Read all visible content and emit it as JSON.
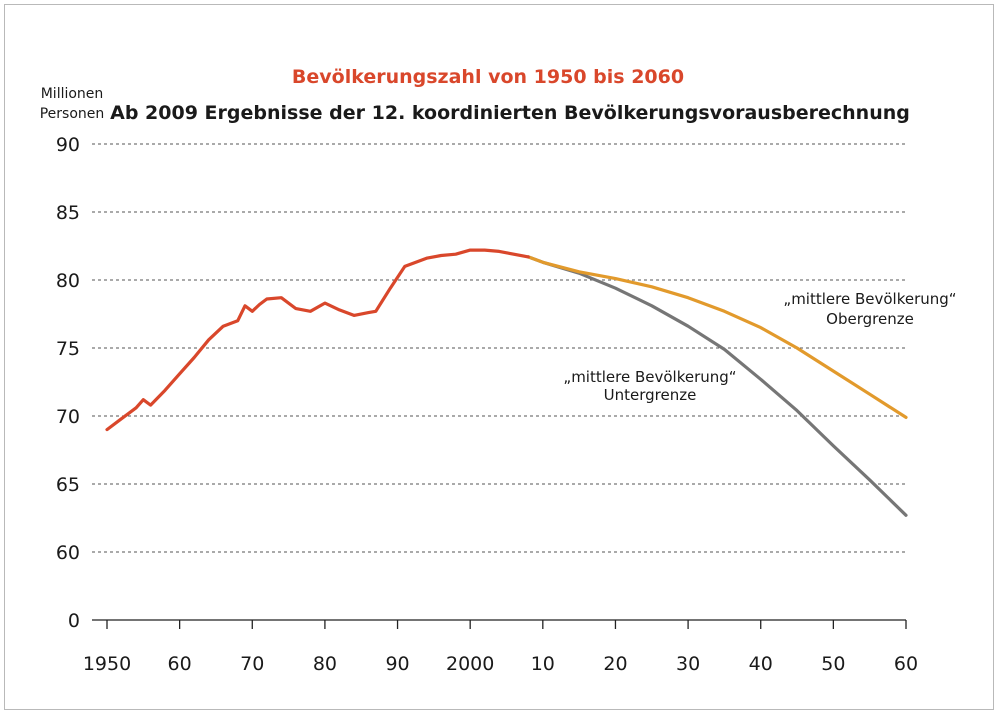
{
  "chart_data": {
    "type": "line",
    "title": "Bevölkerungszahl von 1950 bis 2060",
    "subtitle": "Ab 2009 Ergebnisse der 12. koordinierten Bevölkerungsvorausberechnung",
    "ylabel": [
      "Millionen",
      "Personen"
    ],
    "xlim": [
      1950,
      2060
    ],
    "x_ticks": [
      1950,
      1960,
      1970,
      1980,
      1990,
      2000,
      2010,
      2020,
      2030,
      2040,
      2050,
      2060
    ],
    "x_tick_labels": [
      "1950",
      "60",
      "70",
      "80",
      "90",
      "2000",
      "10",
      "20",
      "30",
      "40",
      "50",
      "60"
    ],
    "y_ticks": [
      0,
      60,
      65,
      70,
      75,
      80,
      85,
      90
    ],
    "y_tick_labels": [
      "0",
      "60",
      "65",
      "70",
      "75",
      "80",
      "85",
      "90"
    ],
    "y_axis_break": "between 0 and 60",
    "grid": "horizontal dashed",
    "series": [
      {
        "name": "",
        "color": "#d9472b",
        "points": [
          [
            1950,
            69.0
          ],
          [
            1952,
            69.8
          ],
          [
            1954,
            70.6
          ],
          [
            1955,
            71.2
          ],
          [
            1956,
            70.8
          ],
          [
            1958,
            71.9
          ],
          [
            1960,
            73.1
          ],
          [
            1962,
            74.3
          ],
          [
            1964,
            75.6
          ],
          [
            1966,
            76.6
          ],
          [
            1968,
            77.0
          ],
          [
            1969,
            78.1
          ],
          [
            1970,
            77.7
          ],
          [
            1971,
            78.2
          ],
          [
            1972,
            78.6
          ],
          [
            1974,
            78.7
          ],
          [
            1976,
            77.9
          ],
          [
            1978,
            77.7
          ],
          [
            1980,
            78.3
          ],
          [
            1982,
            77.8
          ],
          [
            1984,
            77.4
          ],
          [
            1986,
            77.6
          ],
          [
            1987,
            77.7
          ],
          [
            1989,
            79.4
          ],
          [
            1991,
            81.0
          ],
          [
            1994,
            81.6
          ],
          [
            1996,
            81.8
          ],
          [
            1998,
            81.9
          ],
          [
            2000,
            82.2
          ],
          [
            2002,
            82.2
          ],
          [
            2004,
            82.1
          ],
          [
            2005,
            82.0
          ],
          [
            2008,
            81.7
          ]
        ]
      },
      {
        "name": "„mittlere Bevölkerung“ Obergrenze",
        "color": "#e29a2c",
        "points": [
          [
            2008,
            81.7
          ],
          [
            2010,
            81.3
          ],
          [
            2015,
            80.6
          ],
          [
            2020,
            80.1
          ],
          [
            2025,
            79.5
          ],
          [
            2030,
            78.7
          ],
          [
            2035,
            77.7
          ],
          [
            2040,
            76.5
          ],
          [
            2045,
            75.0
          ],
          [
            2050,
            73.3
          ],
          [
            2055,
            71.6
          ],
          [
            2060,
            69.9
          ]
        ]
      },
      {
        "name": "„mittlere Bevölkerung“ Untergrenze",
        "color": "#767676",
        "points": [
          [
            2008,
            81.7
          ],
          [
            2010,
            81.3
          ],
          [
            2015,
            80.5
          ],
          [
            2020,
            79.4
          ],
          [
            2025,
            78.1
          ],
          [
            2030,
            76.6
          ],
          [
            2035,
            74.9
          ],
          [
            2040,
            72.7
          ],
          [
            2045,
            70.4
          ],
          [
            2050,
            67.8
          ],
          [
            2055,
            65.3
          ],
          [
            2060,
            62.7
          ]
        ]
      }
    ],
    "annotations": {
      "upper": [
        "„mittlere Bevölkerung“",
        "Obergrenze"
      ],
      "lower": [
        "„mittlere Bevölkerung“",
        "Untergrenze"
      ]
    }
  }
}
